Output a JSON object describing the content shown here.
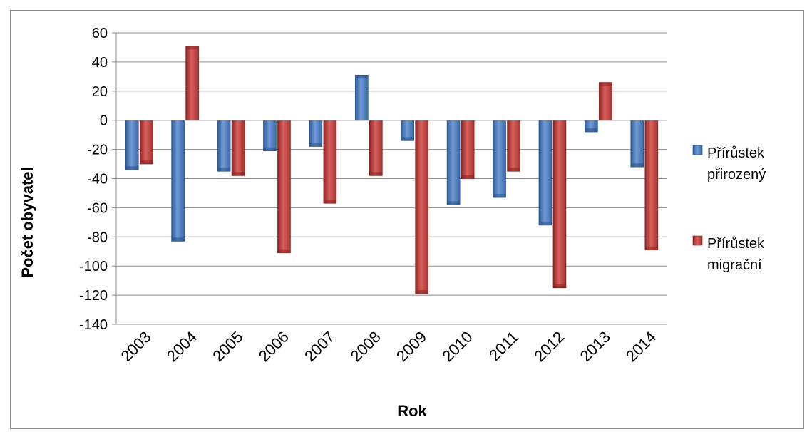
{
  "chart_data": {
    "type": "bar",
    "title": "",
    "xlabel": "Rok",
    "ylabel": "Počet obyvatel",
    "ylim": [
      -140,
      60
    ],
    "y_ticks": [
      60,
      40,
      20,
      0,
      -20,
      -40,
      -60,
      -80,
      -100,
      -120,
      -140
    ],
    "grid": true,
    "legend_position": "right",
    "categories": [
      "2003",
      "2004",
      "2005",
      "2006",
      "2007",
      "2008",
      "2009",
      "2010",
      "2011",
      "2012",
      "2013",
      "2014"
    ],
    "series": [
      {
        "name": "Přírůstek přirozený",
        "legend_lines": [
          "Přírůstek",
          "přirozený"
        ],
        "color": "#4f81bd",
        "values": [
          -34,
          -83,
          -35,
          -21,
          -18,
          31,
          -14,
          -58,
          -53,
          -72,
          -8,
          -32
        ]
      },
      {
        "name": "Přírůstek migrační",
        "legend_lines": [
          "Přírůstek",
          "migrační"
        ],
        "color": "#c0504d",
        "values": [
          -30,
          51,
          -38,
          -91,
          -57,
          -38,
          -119,
          -40,
          -35,
          -115,
          26,
          -89
        ]
      }
    ]
  }
}
